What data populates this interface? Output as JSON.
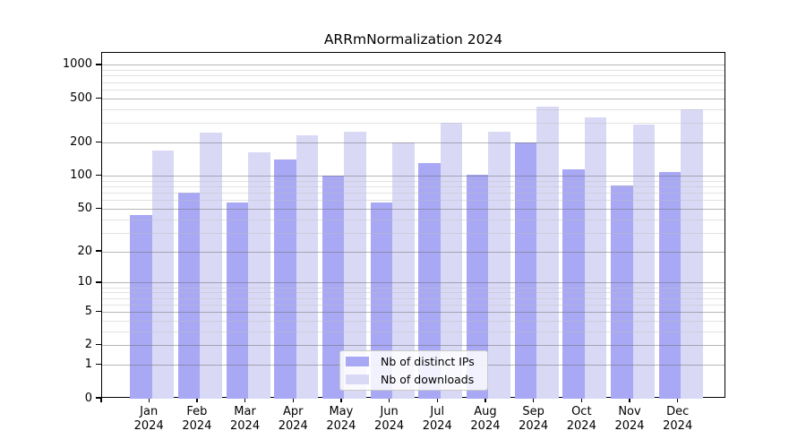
{
  "chart_data": {
    "type": "bar",
    "title": "ARRmNormalization 2024",
    "categories": [
      "Jan 2024",
      "Feb 2024",
      "Mar 2024",
      "Apr 2024",
      "May 2024",
      "Jun 2024",
      "Jul 2024",
      "Aug 2024",
      "Sep 2024",
      "Oct 2024",
      "Nov 2024",
      "Dec 2024"
    ],
    "series": [
      {
        "name": "Nb of distinct IPs",
        "color": "#a8a8f4",
        "values": [
          44,
          70,
          57,
          140,
          100,
          57,
          130,
          103,
          200,
          115,
          82,
          109
        ]
      },
      {
        "name": "Nb of downloads",
        "color": "#d9d9f6",
        "values": [
          170,
          247,
          163,
          234,
          250,
          200,
          302,
          252,
          422,
          340,
          295,
          400
        ]
      }
    ],
    "yscale": "log1p",
    "ylim": [
      0,
      1300
    ],
    "yticks_major": [
      0,
      1,
      2,
      5,
      10,
      20,
      50,
      100,
      200,
      500,
      1000
    ],
    "ytick_labels": [
      "0",
      "1",
      "2",
      "5",
      "10",
      "20",
      "50",
      "100",
      "200",
      "500",
      "1000"
    ],
    "yticks_minor": [
      3,
      4,
      6,
      7,
      8,
      9,
      30,
      40,
      60,
      70,
      80,
      90,
      300,
      400,
      600,
      700,
      800,
      900
    ],
    "xlabel": "",
    "ylabel": "",
    "grid": true,
    "legend_position": "lower center"
  },
  "colors": {
    "ips_bar": "#a8a8f4",
    "downloads_bar": "#d9d9f6",
    "grid_major": "rgba(110,110,110,0.5)",
    "grid_minor": "rgba(190,190,190,0.45)",
    "axis": "#000000",
    "legend_border": "#c9c9c9"
  }
}
